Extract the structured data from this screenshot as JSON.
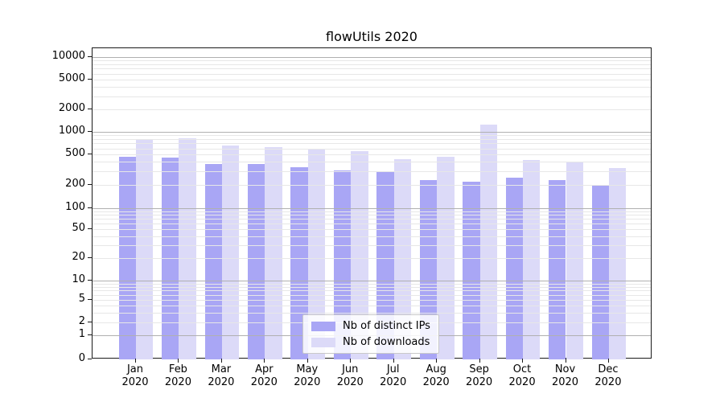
{
  "title": "flowUtils 2020",
  "legend": {
    "items": [
      {
        "label": "Nb of distinct IPs",
        "color": "#a9a6f5"
      },
      {
        "label": "Nb of downloads",
        "color": "#dcdaf8"
      }
    ]
  },
  "chart_data": {
    "type": "bar",
    "title": "flowUtils 2020",
    "categories": [
      "Jan 2020",
      "Feb 2020",
      "Mar 2020",
      "Apr 2020",
      "May 2020",
      "Jun 2020",
      "Jul 2020",
      "Aug 2020",
      "Sep 2020",
      "Oct 2020",
      "Nov 2020",
      "Dec 2020"
    ],
    "series": [
      {
        "name": "Nb of distinct IPs",
        "color": "#a9a6f5",
        "values": [
          460,
          450,
          370,
          375,
          340,
          305,
          300,
          230,
          220,
          250,
          230,
          195
        ]
      },
      {
        "name": "Nb of downloads",
        "color": "#dcdaf8",
        "values": [
          800,
          830,
          660,
          620,
          590,
          550,
          430,
          460,
          1250,
          420,
          400,
          330
        ]
      }
    ],
    "xlabel": "",
    "ylabel": "",
    "yscale": "symlog",
    "yticks": [
      0,
      1,
      2,
      5,
      10,
      20,
      50,
      100,
      200,
      500,
      1000,
      2000,
      5000,
      10000
    ],
    "ylim": [
      0,
      13000
    ],
    "grid": "both",
    "grid_above_bars": true,
    "legend_position": "lower center",
    "colors": {
      "background": "#ffffff",
      "major_grid": "#b0b0b0",
      "minor_grid": "#e7e7e7",
      "spine": "#1a1a1a"
    }
  }
}
